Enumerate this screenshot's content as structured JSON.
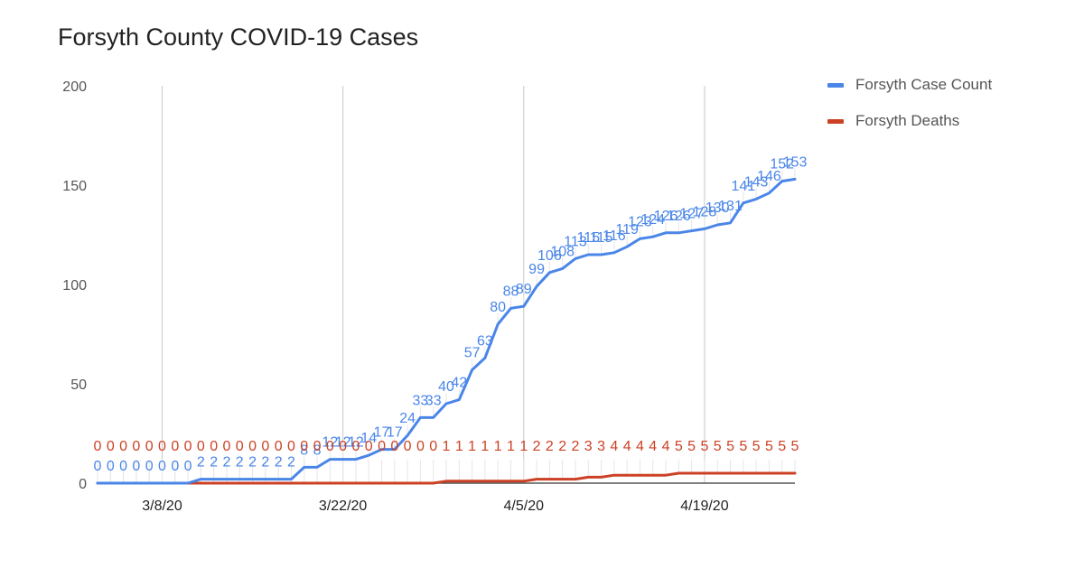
{
  "chart_data": {
    "type": "line",
    "title": "Forsyth County COVID-19 Cases",
    "xlabel": "",
    "ylabel": "",
    "ylim": [
      0,
      200
    ],
    "yticks": [
      0,
      50,
      100,
      150,
      200
    ],
    "x_tick_labels": [
      "3/8/20",
      "3/22/20",
      "4/5/20",
      "4/19/20"
    ],
    "x_tick_dates": [
      "2020-03-08",
      "2020-03-22",
      "2020-04-05",
      "2020-04-19"
    ],
    "x": [
      "2020-03-03",
      "2020-03-04",
      "2020-03-05",
      "2020-03-06",
      "2020-03-07",
      "2020-03-08",
      "2020-03-09",
      "2020-03-10",
      "2020-03-11",
      "2020-03-12",
      "2020-03-13",
      "2020-03-14",
      "2020-03-15",
      "2020-03-16",
      "2020-03-17",
      "2020-03-18",
      "2020-03-19",
      "2020-03-20",
      "2020-03-21",
      "2020-03-22",
      "2020-03-23",
      "2020-03-24",
      "2020-03-25",
      "2020-03-26",
      "2020-03-27",
      "2020-03-28",
      "2020-03-29",
      "2020-03-30",
      "2020-03-31",
      "2020-04-01",
      "2020-04-02",
      "2020-04-03",
      "2020-04-04",
      "2020-04-05",
      "2020-04-06",
      "2020-04-07",
      "2020-04-08",
      "2020-04-09",
      "2020-04-10",
      "2020-04-11",
      "2020-04-12",
      "2020-04-13",
      "2020-04-14",
      "2020-04-15",
      "2020-04-16",
      "2020-04-17",
      "2020-04-18",
      "2020-04-19",
      "2020-04-20",
      "2020-04-21",
      "2020-04-22",
      "2020-04-23",
      "2020-04-24",
      "2020-04-25",
      "2020-04-26"
    ],
    "series": [
      {
        "name": "Forsyth Case Count",
        "color": "#4a86e8",
        "values": [
          0,
          0,
          0,
          0,
          0,
          0,
          0,
          0,
          2,
          2,
          2,
          2,
          2,
          2,
          2,
          2,
          8,
          8,
          12,
          12,
          12,
          14,
          17,
          17,
          24,
          33,
          33,
          40,
          42,
          57,
          63,
          80,
          88,
          89,
          99,
          106,
          108,
          113,
          115,
          115,
          116,
          119,
          123,
          124,
          126,
          126,
          127,
          128,
          130,
          131,
          141,
          143,
          146,
          152,
          153
        ]
      },
      {
        "name": "Forsyth Deaths",
        "color": "#cc4125",
        "values": [
          0,
          0,
          0,
          0,
          0,
          0,
          0,
          0,
          0,
          0,
          0,
          0,
          0,
          0,
          0,
          0,
          0,
          0,
          0,
          0,
          0,
          0,
          0,
          0,
          0,
          0,
          0,
          1,
          1,
          1,
          1,
          1,
          1,
          1,
          2,
          2,
          2,
          2,
          3,
          3,
          4,
          4,
          4,
          4,
          4,
          5,
          5,
          5,
          5,
          5,
          5,
          5,
          5,
          5,
          5
        ]
      }
    ],
    "legend_position": "right",
    "grid": "vertical",
    "data_labels": true
  }
}
